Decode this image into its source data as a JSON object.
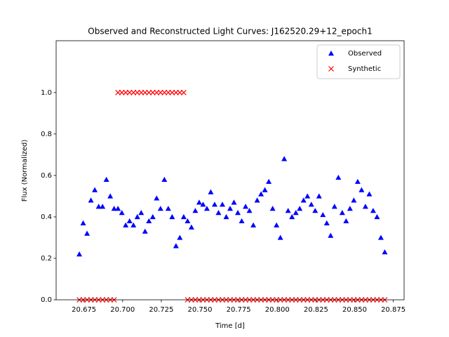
{
  "chart_data": {
    "type": "scatter",
    "title": "Observed and Reconstructed Light Curves: J162520.29+12_epoch1",
    "x_label": "Time [d]",
    "y_label": "Flux (Normalized)",
    "x": [
      20.672,
      20.6745,
      20.677,
      20.6795,
      20.682,
      20.6845,
      20.687,
      20.6895,
      20.692,
      20.6945,
      20.697,
      20.6995,
      20.702,
      20.7045,
      20.707,
      20.7095,
      20.712,
      20.7145,
      20.717,
      20.7195,
      20.722,
      20.7245,
      20.727,
      20.7295,
      20.732,
      20.7345,
      20.737,
      20.7395,
      20.742,
      20.7445,
      20.747,
      20.7495,
      20.752,
      20.7545,
      20.757,
      20.7595,
      20.762,
      20.7645,
      20.767,
      20.7695,
      20.772,
      20.7745,
      20.777,
      20.7795,
      20.782,
      20.7845,
      20.787,
      20.7895,
      20.792,
      20.7945,
      20.797,
      20.7995,
      20.802,
      20.8045,
      20.807,
      20.8095,
      20.812,
      20.8145,
      20.817,
      20.8195,
      20.822,
      20.8245,
      20.827,
      20.8295,
      20.832,
      20.8345,
      20.837,
      20.8395,
      20.842,
      20.8445,
      20.847,
      20.8495,
      20.852,
      20.8545,
      20.857,
      20.8595,
      20.862,
      20.8645,
      20.867,
      20.8695
    ],
    "series": [
      {
        "name": "Observed",
        "color": "#0000ff",
        "marker": "triangle",
        "values": [
          0.22,
          0.37,
          0.32,
          0.48,
          0.53,
          0.45,
          0.45,
          0.58,
          0.5,
          0.44,
          0.44,
          0.42,
          0.36,
          0.38,
          0.36,
          0.4,
          0.42,
          0.33,
          0.38,
          0.4,
          0.49,
          0.44,
          0.58,
          0.44,
          0.4,
          0.26,
          0.3,
          0.4,
          0.38,
          0.35,
          0.43,
          0.47,
          0.46,
          0.44,
          0.52,
          0.46,
          0.42,
          0.46,
          0.4,
          0.44,
          0.47,
          0.42,
          0.38,
          0.45,
          0.43,
          0.36,
          0.48,
          0.51,
          0.53,
          0.57,
          0.44,
          0.36,
          0.3,
          0.68,
          0.43,
          0.4,
          0.42,
          0.44,
          0.48,
          0.5,
          0.46,
          0.43,
          0.5,
          0.41,
          0.37,
          0.31,
          0.45,
          0.59,
          0.42,
          0.38,
          0.44,
          0.48,
          0.57,
          0.53,
          0.45,
          0.51,
          0.43,
          0.4,
          0.3,
          0.23
        ]
      },
      {
        "name": "Synthetic",
        "color": "#ff0000",
        "marker": "x",
        "values": [
          0,
          0,
          0,
          0,
          0,
          0,
          0,
          0,
          0,
          0,
          1,
          1,
          1,
          1,
          1,
          1,
          1,
          1,
          1,
          1,
          1,
          1,
          1,
          1,
          1,
          1,
          1,
          1,
          0,
          0,
          0,
          0,
          0,
          0,
          0,
          0,
          0,
          0,
          0,
          0,
          0,
          0,
          0,
          0,
          0,
          0,
          0,
          0,
          0,
          0,
          0,
          0,
          0,
          0,
          0,
          0,
          0,
          0,
          0,
          0,
          0,
          0,
          0,
          0,
          0,
          0,
          0,
          0,
          0,
          0,
          0,
          0,
          0,
          0,
          0,
          0,
          0,
          0,
          0,
          0
        ]
      }
    ],
    "xlim": [
      20.657,
      20.882
    ],
    "xticks": [
      20.675,
      {
        "value": 20.7,
        "label": "20.700"
      },
      20.725,
      {
        "value": 20.75,
        "label": "20.750"
      },
      20.775,
      {
        "value": 20.8,
        "label": "20.800"
      },
      20.825,
      {
        "value": 20.85,
        "label": "20.850"
      },
      20.875
    ],
    "ylim": [
      0,
      1.25
    ],
    "yticks": [
      {
        "value": 0,
        "label": "0.0"
      },
      0.2,
      0.4,
      0.6,
      0.8,
      {
        "value": 1,
        "label": "1.0"
      },
      2.0
    ],
    "legend": "upper right"
  }
}
